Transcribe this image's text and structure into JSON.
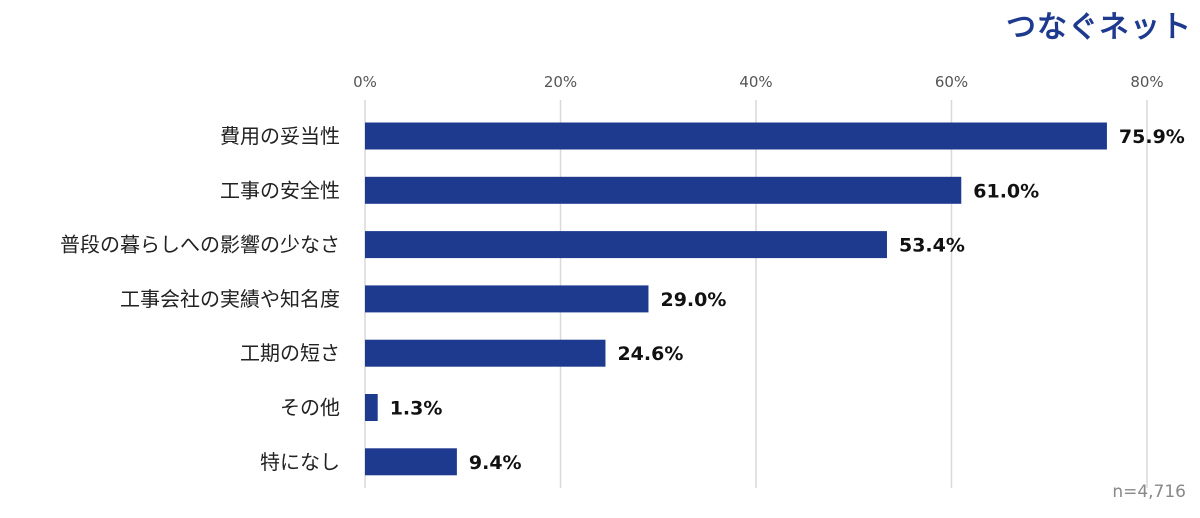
{
  "brand": "つなぐネット",
  "chart_data": {
    "type": "bar",
    "orientation": "horizontal",
    "categories": [
      "費用の妥当性",
      "工事の安全性",
      "普段の暮らしへの影響の少なさ",
      "工事会社の実績や知名度",
      "工期の短さ",
      "その他",
      "特になし"
    ],
    "values": [
      75.9,
      61.0,
      53.4,
      29.0,
      24.6,
      1.3,
      9.4
    ],
    "value_labels": [
      "75.9%",
      "61.0%",
      "53.4%",
      "29.0%",
      "24.6%",
      "1.3%",
      "9.4%"
    ],
    "ticks": [
      0,
      20,
      40,
      60,
      80
    ],
    "tick_labels": [
      "0%",
      "20%",
      "40%",
      "60%",
      "80%"
    ],
    "xlim": [
      0,
      80
    ],
    "axis_position": "top",
    "grid": true,
    "bar_color": "#1e3a8f"
  },
  "note": "n=4,716"
}
